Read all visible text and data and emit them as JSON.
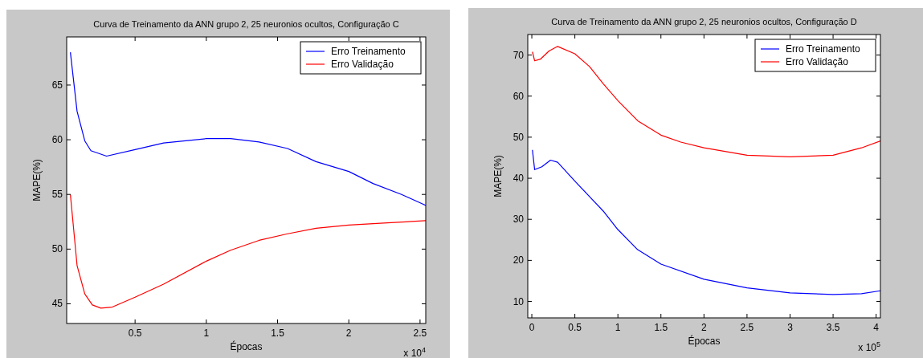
{
  "chart_data": [
    {
      "type": "line",
      "title": "Curva de Treinamento da ANN grupo 2, 25 neuronios ocultos, Configuração C",
      "xlabel": "Épocas",
      "ylabel": "MAPE(%)",
      "annotations": [
        "x 10$^{4}$"
      ],
      "xlim": [
        0.02,
        2.54
      ],
      "xticks": [
        0.5,
        1,
        1.5,
        2,
        2.5
      ],
      "ylim": [
        43.2,
        69.4
      ],
      "yticks": [
        45,
        50,
        55,
        60,
        65
      ],
      "legend": "top right",
      "grid": false,
      "series": [
        {
          "name": "Erro Treinamento",
          "color": "#0000ff",
          "x": [
            0.046,
            0.093,
            0.147,
            0.19,
            0.3,
            0.5,
            0.7,
            1.0,
            1.17,
            1.37,
            1.57,
            1.77,
            2.0,
            2.17,
            2.37,
            2.54
          ],
          "values": [
            68.0,
            62.6,
            59.9,
            59.0,
            58.5,
            59.1,
            59.7,
            60.1,
            60.1,
            59.8,
            59.2,
            58.0,
            57.1,
            56.0,
            55.0,
            54.0
          ]
        },
        {
          "name": "Erro Validação",
          "color": "#ff0000",
          "x": [
            0.046,
            0.093,
            0.147,
            0.2,
            0.26,
            0.34,
            0.5,
            0.7,
            1.0,
            1.17,
            1.37,
            1.57,
            1.77,
            2.0,
            2.27,
            2.54
          ],
          "values": [
            55.0,
            48.5,
            45.9,
            44.9,
            44.6,
            44.7,
            45.6,
            46.8,
            48.9,
            49.9,
            50.8,
            51.4,
            51.9,
            52.2,
            52.4,
            52.6
          ]
        }
      ]
    },
    {
      "type": "line",
      "title": "Curva de Treinamento da ANN grupo 2, 25 neuronios ocultos, Configuração D",
      "xlabel": "Épocas",
      "ylabel": "MAPE(%)",
      "annotations": [
        "x 10$^{5}$"
      ],
      "xlim": [
        -0.047,
        4.05
      ],
      "xticks": [
        0,
        0.5,
        1,
        1.5,
        2,
        2.5,
        3,
        3.5,
        4
      ],
      "ylim": [
        6,
        75
      ],
      "yticks": [
        10,
        20,
        30,
        40,
        50,
        60,
        70
      ],
      "legend": "top right",
      "grid": false,
      "series": [
        {
          "name": "Erro Treinamento",
          "color": "#0000ff",
          "x": [
            0.007,
            0.033,
            0.117,
            0.217,
            0.3,
            0.5,
            0.83,
            1.0,
            1.23,
            1.5,
            2.0,
            2.5,
            3.0,
            3.5,
            3.83,
            4.05
          ],
          "values": [
            46.9,
            42.1,
            42.8,
            44.4,
            43.9,
            39.3,
            32.0,
            27.5,
            22.6,
            19.1,
            15.4,
            13.3,
            12.1,
            11.7,
            11.9,
            12.6
          ]
        },
        {
          "name": "Erro Validação",
          "color": "#ff0000",
          "x": [
            0.007,
            0.033,
            0.1,
            0.2,
            0.3,
            0.5,
            0.67,
            0.83,
            1.0,
            1.23,
            1.5,
            1.73,
            2.0,
            2.5,
            3.0,
            3.5,
            3.83,
            4.05
          ],
          "values": [
            70.8,
            68.6,
            69.0,
            71.0,
            72.1,
            70.3,
            67.2,
            63.0,
            58.9,
            54.0,
            50.5,
            48.8,
            47.4,
            45.6,
            45.2,
            45.6,
            47.4,
            49.1
          ]
        }
      ]
    }
  ]
}
